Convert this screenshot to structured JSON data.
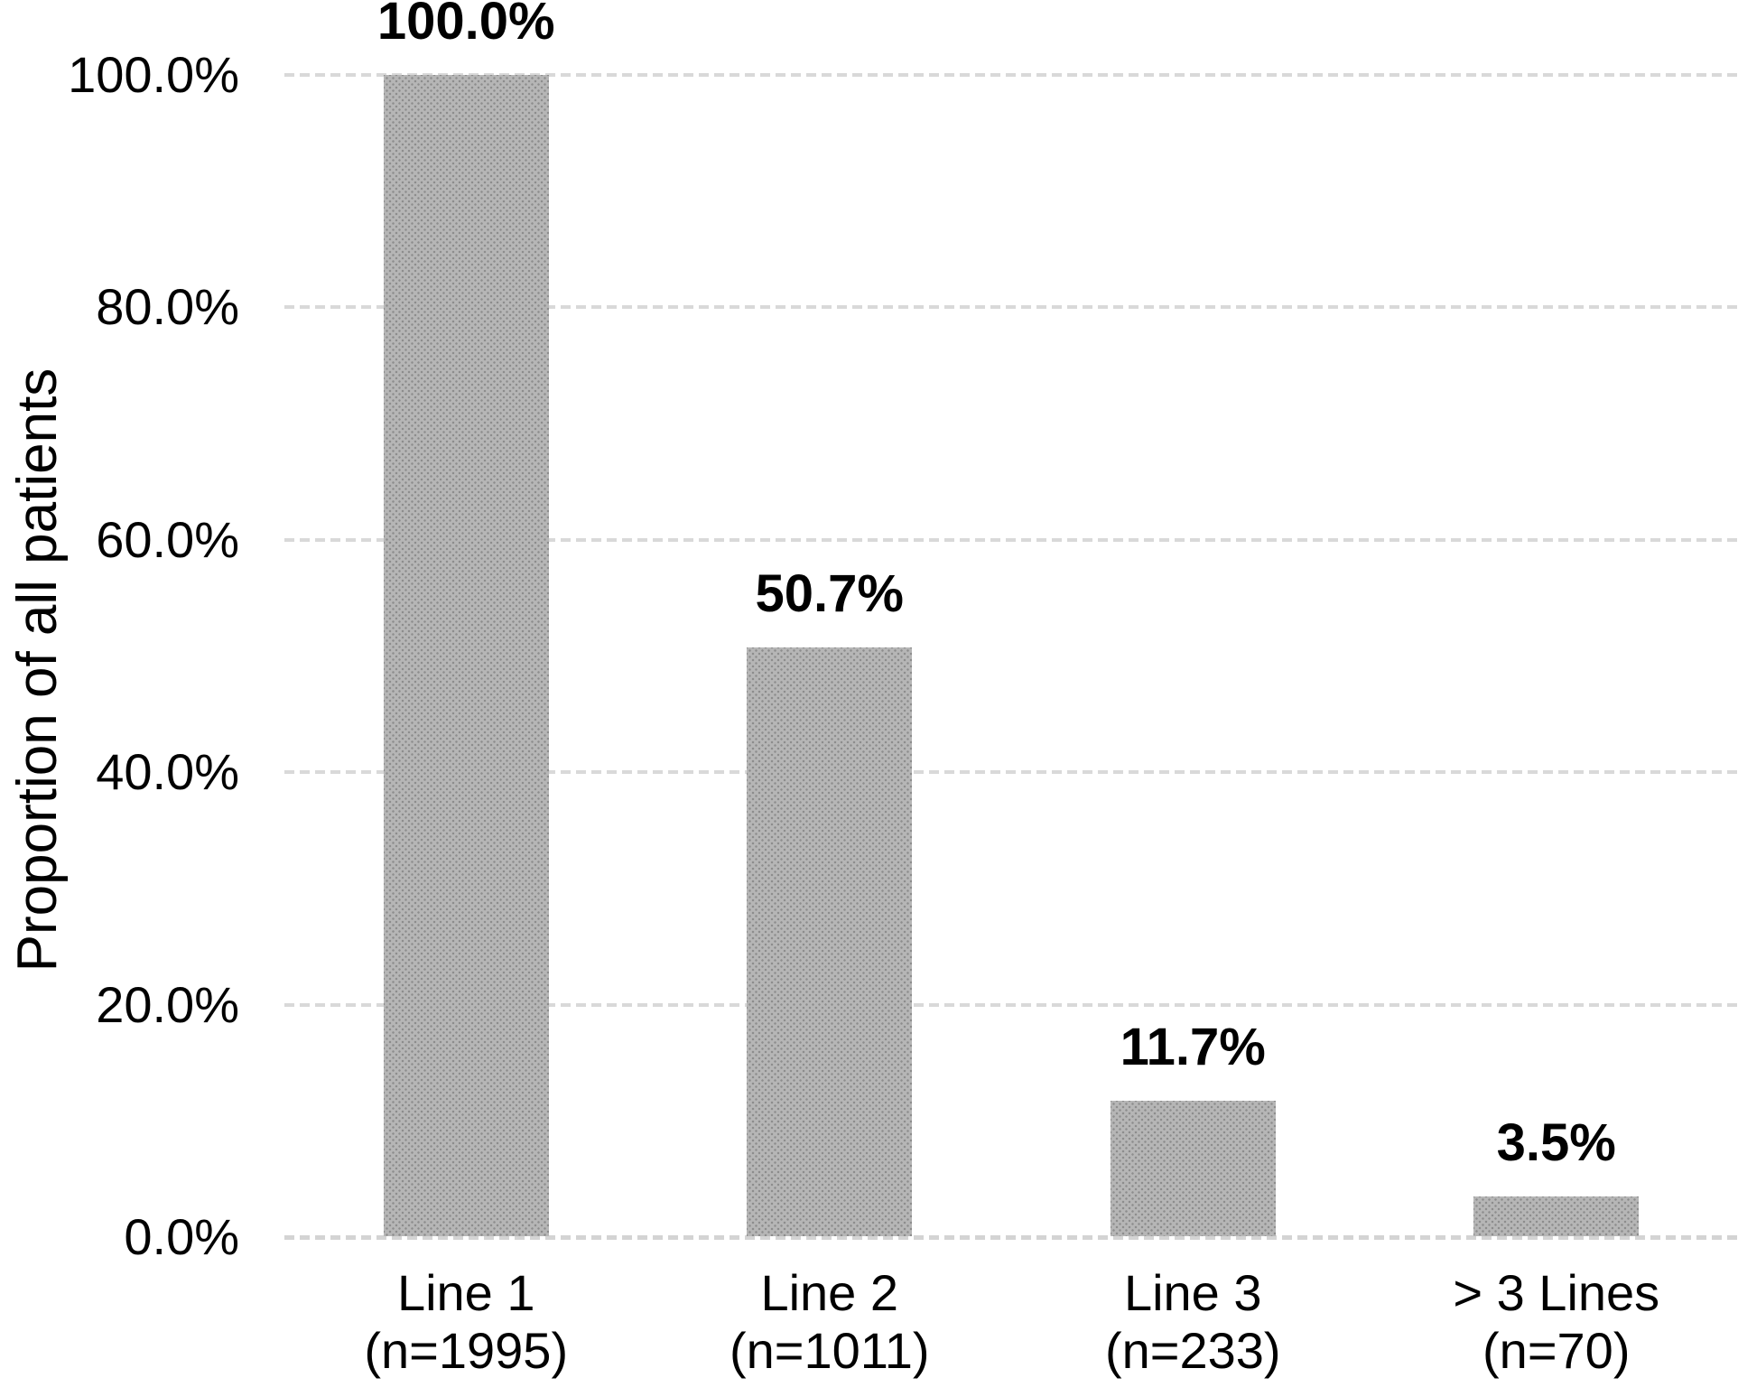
{
  "figure": {
    "background": "#ffffff"
  },
  "chart_data": {
    "type": "bar",
    "title": "",
    "ylabel": "Proportion of all patients",
    "xlabel": "",
    "categories": [
      {
        "label": "Line 1",
        "sub": "(n=1995)"
      },
      {
        "label": "Line 2",
        "sub": "(n=1011)"
      },
      {
        "label": "Line 3",
        "sub": "(n=233)"
      },
      {
        "label": "> 3 Lines",
        "sub": "(n=70)"
      }
    ],
    "values": [
      100.0,
      50.7,
      11.7,
      3.5
    ],
    "data_labels": [
      "100.0%",
      "50.7%",
      "11.7%",
      "3.5%"
    ],
    "y_axis": {
      "min": 0,
      "max": 100,
      "ticks": [
        {
          "value": 100,
          "label": "100.0%"
        },
        {
          "value": 80,
          "label": "80.0%"
        },
        {
          "value": 60,
          "label": "60.0%"
        },
        {
          "value": 40,
          "label": "40.0%"
        },
        {
          "value": 20,
          "label": "20.0%"
        },
        {
          "value": 0,
          "label": "0.0%"
        }
      ]
    },
    "grid": "horizontal-dashed",
    "legend": "none",
    "colors": {
      "bar_fill": "#b6b6b6",
      "bar_dot": "#8d8d8d",
      "gridline": "#d9d9d9",
      "baseline": "#d4d4d4",
      "text": "#000000"
    }
  }
}
